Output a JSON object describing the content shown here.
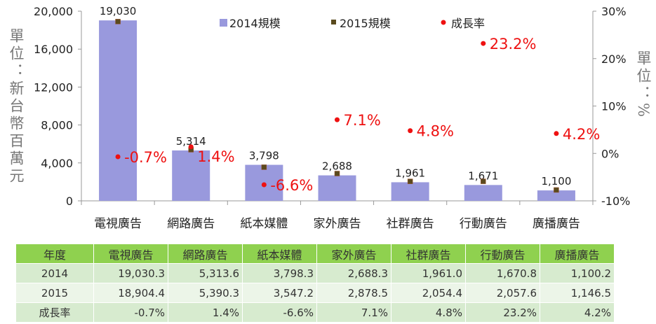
{
  "chart_data": {
    "type": "bar",
    "categories": [
      "電視廣告",
      "網路廣告",
      "紙本媒體",
      "家外廣告",
      "社群廣告",
      "行動廣告",
      "廣播廣告"
    ],
    "series": [
      {
        "name": "2014規模",
        "kind": "bar",
        "axis": "left",
        "values": [
          19030,
          5314,
          3798,
          2688,
          1961,
          1671,
          1100
        ],
        "labels": [
          "19,030",
          "5,314",
          "3,798",
          "2,688",
          "1,961",
          "1,671",
          "1,100"
        ],
        "color": "#9999dd"
      },
      {
        "name": "2015規模",
        "kind": "marker",
        "axis": "left",
        "values": [
          18904.4,
          5390.3,
          3547.2,
          2878.5,
          2054.4,
          2057.6,
          1146.5
        ],
        "color": "#5a4a1e"
      },
      {
        "name": "成長率",
        "kind": "dot",
        "axis": "right",
        "values": [
          -0.7,
          1.4,
          -6.6,
          7.1,
          4.8,
          23.2,
          4.2
        ],
        "labels": [
          "-0.7%",
          "1.4%",
          "-6.6%",
          "7.1%",
          "4.8%",
          "23.2%",
          "4.2%"
        ],
        "color": "#ee1111"
      }
    ],
    "ylabel": "單位：新台幣百萬元",
    "y2label": "單位：%",
    "ylim": [
      0,
      20000
    ],
    "yticks": [
      "0",
      "4,000",
      "8,000",
      "12,000",
      "16,000",
      "20,000"
    ],
    "y2lim": [
      -10,
      30
    ],
    "y2ticks": [
      "-10%",
      "0%",
      "10%",
      "20%",
      "30%"
    ],
    "legend": "top",
    "grid": false
  },
  "table": {
    "header": [
      "年度",
      "電視廣告",
      "網路廣告",
      "紙本媒體",
      "家外廣告",
      "社群廣告",
      "行動廣告",
      "廣播廣告"
    ],
    "rows": [
      [
        "2014",
        "19,030.3",
        "5,313.6",
        "3,798.3",
        "2,688.3",
        "1,961.0",
        "1,670.8",
        "1,100.2"
      ],
      [
        "2015",
        "18,904.4",
        "5,390.3",
        "3,547.2",
        "2,878.5",
        "2,054.4",
        "2,057.6",
        "1,146.5"
      ],
      [
        "成長率",
        "-0.7%",
        "1.4%",
        "-6.6%",
        "7.1%",
        "4.8%",
        "23.2%",
        "4.2%"
      ]
    ]
  }
}
